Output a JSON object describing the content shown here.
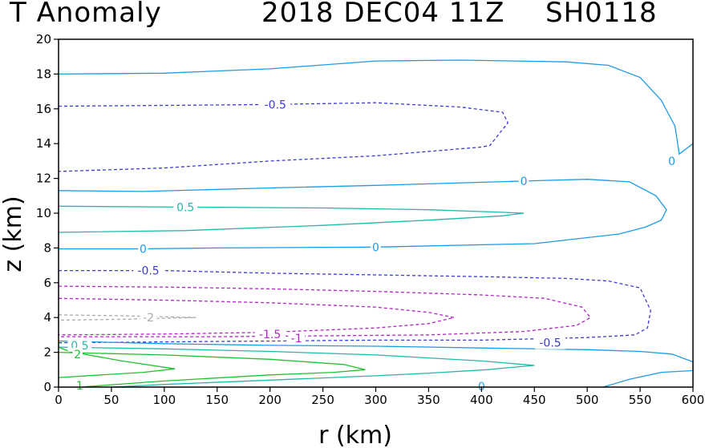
{
  "header": {
    "title_left": "T Anomaly",
    "title_mid": "2018 DEC04 11Z",
    "title_right": "SH0118"
  },
  "chart_data": {
    "type": "contour",
    "xlabel": "r (km)",
    "ylabel": "z (km)",
    "xlim": [
      0,
      600
    ],
    "ylim": [
      0,
      20
    ],
    "xticks": [
      0,
      50,
      100,
      150,
      200,
      250,
      300,
      350,
      400,
      450,
      500,
      550,
      600
    ],
    "yticks": [
      0,
      2,
      4,
      6,
      8,
      10,
      12,
      14,
      16,
      18,
      20
    ],
    "grid": false,
    "negative_dashed": true,
    "colors": {
      "c0": "#1e9be6",
      "c_neg05": "#3c3cd2",
      "c_pos05": "#22b9aa",
      "c_neg1": "#b424c8",
      "c_neg2": "#aaaaaa",
      "c_pos1": "#22c030",
      "c_pos2": "#22c030"
    },
    "contours": [
      {
        "level": 0,
        "color_key": "c0",
        "dashed": false,
        "points": [
          [
            0,
            18
          ],
          [
            100,
            18.05
          ],
          [
            200,
            18.3
          ],
          [
            300,
            18.75
          ],
          [
            380,
            18.8
          ],
          [
            480,
            18.7
          ],
          [
            520,
            18.5
          ],
          [
            550,
            17.8
          ],
          [
            570,
            16.5
          ],
          [
            583,
            15
          ],
          [
            587,
            13.4
          ],
          [
            600,
            14
          ]
        ]
      },
      {
        "level": -0.5,
        "color_key": "c_neg05",
        "dashed": true,
        "points": [
          [
            0,
            16.15
          ],
          [
            100,
            16.2
          ],
          [
            200,
            16.25
          ],
          [
            300,
            16.35
          ],
          [
            380,
            16.1
          ],
          [
            420,
            15.8
          ],
          [
            425,
            15.2
          ],
          [
            408,
            13.9
          ],
          [
            400,
            13.8
          ],
          [
            300,
            13.3
          ],
          [
            200,
            13.0
          ],
          [
            100,
            12.6
          ],
          [
            0,
            12.4
          ]
        ]
      },
      {
        "level": 0,
        "color_key": "c0",
        "dashed": false,
        "points": [
          [
            0,
            11.3
          ],
          [
            80,
            11.25
          ],
          [
            200,
            11.45
          ],
          [
            300,
            11.6
          ],
          [
            440,
            11.85
          ],
          [
            500,
            11.95
          ],
          [
            540,
            11.8
          ],
          [
            565,
            11.0
          ],
          [
            575,
            10.2
          ],
          [
            570,
            9.6
          ],
          [
            555,
            9.2
          ],
          [
            530,
            8.8
          ],
          [
            450,
            8.25
          ],
          [
            300,
            8.05
          ],
          [
            150,
            8.0
          ],
          [
            75,
            7.95
          ],
          [
            0,
            7.95
          ]
        ]
      },
      {
        "level": 0.5,
        "color_key": "c_pos05",
        "dashed": false,
        "points": [
          [
            0,
            10.4
          ],
          [
            120,
            10.35
          ],
          [
            250,
            10.3
          ],
          [
            350,
            10.2
          ],
          [
            420,
            10.05
          ],
          [
            440,
            10.0
          ],
          [
            420,
            9.85
          ],
          [
            350,
            9.6
          ],
          [
            250,
            9.3
          ],
          [
            120,
            9.0
          ],
          [
            0,
            8.9
          ]
        ]
      },
      {
        "level": -0.5,
        "color_key": "c_neg05",
        "dashed": true,
        "points": [
          [
            0,
            6.7
          ],
          [
            100,
            6.7
          ],
          [
            200,
            6.55
          ],
          [
            300,
            6.45
          ],
          [
            400,
            6.35
          ],
          [
            480,
            6.25
          ],
          [
            520,
            6.1
          ],
          [
            550,
            5.7
          ],
          [
            560,
            4.4
          ],
          [
            557,
            3.4
          ],
          [
            545,
            3.0
          ],
          [
            500,
            2.85
          ],
          [
            400,
            2.7
          ],
          [
            300,
            2.7
          ],
          [
            200,
            2.65
          ],
          [
            100,
            2.6
          ],
          [
            0,
            2.55
          ]
        ]
      },
      {
        "level": -1,
        "color_key": "c_neg1",
        "dashed": true,
        "points": [
          [
            0,
            5.8
          ],
          [
            100,
            5.75
          ],
          [
            200,
            5.65
          ],
          [
            300,
            5.5
          ],
          [
            400,
            5.3
          ],
          [
            460,
            5.1
          ],
          [
            495,
            4.6
          ],
          [
            503,
            4.0
          ],
          [
            490,
            3.55
          ],
          [
            440,
            3.2
          ],
          [
            350,
            3.0
          ],
          [
            250,
            2.95
          ],
          [
            150,
            2.9
          ],
          [
            0,
            2.9
          ]
        ]
      },
      {
        "level": -1.5,
        "color_key": "c_neg1",
        "dashed": true,
        "points": [
          [
            0,
            5.1
          ],
          [
            100,
            5.0
          ],
          [
            200,
            4.85
          ],
          [
            300,
            4.6
          ],
          [
            350,
            4.3
          ],
          [
            374,
            4.0
          ],
          [
            350,
            3.65
          ],
          [
            300,
            3.4
          ],
          [
            200,
            3.15
          ],
          [
            100,
            3.05
          ],
          [
            0,
            3.0
          ]
        ]
      },
      {
        "level": -2,
        "color_key": "c_neg2",
        "dashed": true,
        "points": [
          [
            0,
            4.15
          ],
          [
            60,
            4.1
          ],
          [
            130,
            4.0
          ],
          [
            60,
            3.9
          ],
          [
            0,
            3.85
          ]
        ]
      },
      {
        "level": 0,
        "color_key": "c0",
        "dashed": false,
        "points": [
          [
            0,
            2.65
          ],
          [
            100,
            2.5
          ],
          [
            200,
            2.4
          ],
          [
            300,
            2.35
          ],
          [
            400,
            2.25
          ],
          [
            500,
            2.15
          ],
          [
            550,
            2.05
          ],
          [
            580,
            1.9
          ],
          [
            600,
            1.45
          ],
          [
            600,
            1.0
          ]
        ]
      },
      {
        "level": 0,
        "color_key": "c0",
        "dashed": false,
        "points": [
          [
            515,
            0
          ],
          [
            540,
            0.45
          ],
          [
            570,
            0.85
          ],
          [
            600,
            0.95
          ]
        ]
      },
      {
        "level": 0.5,
        "color_key": "c_pos05",
        "dashed": false,
        "points": [
          [
            0,
            2.3
          ],
          [
            100,
            2.2
          ],
          [
            200,
            2.05
          ],
          [
            300,
            1.85
          ],
          [
            400,
            1.5
          ],
          [
            450,
            1.25
          ],
          [
            405,
            1.0
          ],
          [
            350,
            0.8
          ],
          [
            300,
            0.65
          ],
          [
            200,
            0.4
          ],
          [
            100,
            0.15
          ],
          [
            50,
            0
          ]
        ]
      },
      {
        "level": 1,
        "color_key": "c_pos1",
        "dashed": false,
        "points": [
          [
            0,
            2.0
          ],
          [
            100,
            1.85
          ],
          [
            200,
            1.6
          ],
          [
            270,
            1.3
          ],
          [
            290,
            1.0
          ],
          [
            260,
            0.85
          ],
          [
            200,
            0.7
          ],
          [
            100,
            0.35
          ],
          [
            20,
            0
          ]
        ]
      },
      {
        "level": 2,
        "color_key": "c_pos2",
        "dashed": false,
        "points": [
          [
            0,
            2.3
          ],
          [
            10,
            2.05
          ],
          [
            60,
            1.5
          ],
          [
            110,
            1.05
          ],
          [
            80,
            0.85
          ],
          [
            40,
            0.7
          ],
          [
            0,
            0.55
          ]
        ]
      }
    ],
    "labels": [
      {
        "text": "-0.5",
        "x": 205,
        "y": 16.25,
        "color_key": "c_neg05"
      },
      {
        "text": "0",
        "x": 440,
        "y": 11.85,
        "color_key": "c0"
      },
      {
        "text": "0.5",
        "x": 120,
        "y": 10.35,
        "color_key": "c_pos05"
      },
      {
        "text": "0",
        "x": 80,
        "y": 7.95,
        "color_key": "c0"
      },
      {
        "text": "0",
        "x": 300,
        "y": 8.05,
        "color_key": "c0"
      },
      {
        "text": "0",
        "x": 580,
        "y": 13.0,
        "color_key": "c0"
      },
      {
        "text": "-0.5",
        "x": 85,
        "y": 6.7,
        "color_key": "c_neg05"
      },
      {
        "text": "-2",
        "x": 85,
        "y": 4.0,
        "color_key": "c_neg2"
      },
      {
        "text": "-1.5",
        "x": 200,
        "y": 3.05,
        "color_key": "c_neg1"
      },
      {
        "text": "-1",
        "x": 225,
        "y": 2.8,
        "color_key": "c_neg1"
      },
      {
        "text": "-0.5",
        "x": 465,
        "y": 2.55,
        "color_key": "c_neg05"
      },
      {
        "text": "0.5",
        "x": 20,
        "y": 2.4,
        "color_key": "c_pos05"
      },
      {
        "text": "2",
        "x": 18,
        "y": 1.9,
        "color_key": "c_pos2"
      },
      {
        "text": "1",
        "x": 20,
        "y": 0.1,
        "color_key": "c_pos1"
      },
      {
        "text": "0",
        "x": 400,
        "y": 0.05,
        "color_key": "c0"
      }
    ]
  }
}
